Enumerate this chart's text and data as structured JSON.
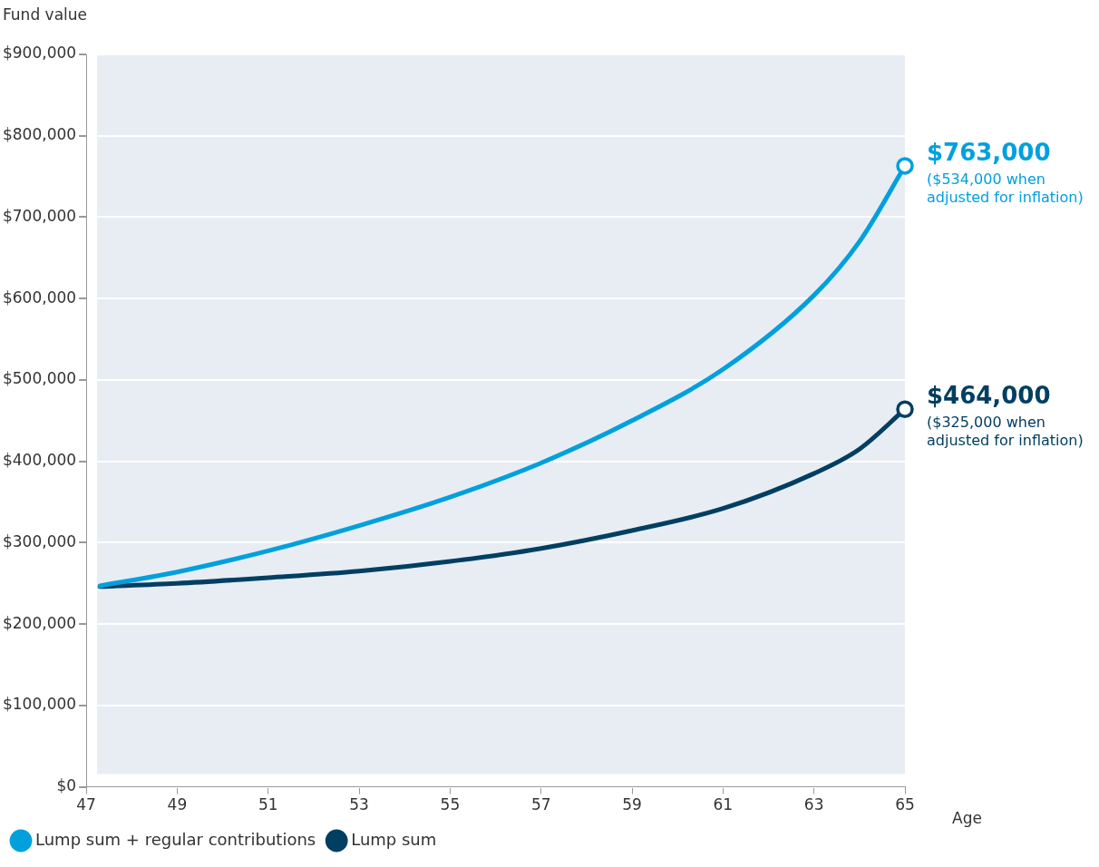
{
  "chart_data": {
    "type": "line",
    "xlabel": "Age",
    "ylabel": "Fund value",
    "xlim": [
      47,
      65
    ],
    "xticks": [
      47,
      49,
      51,
      53,
      55,
      57,
      59,
      61,
      63,
      65
    ],
    "ylim": [
      0,
      900000
    ],
    "yticks": [
      {
        "value": 0,
        "label": "$0"
      },
      {
        "value": 100000,
        "label": "$100,000"
      },
      {
        "value": 200000,
        "label": "$200,000"
      },
      {
        "value": 300000,
        "label": "$300,000"
      },
      {
        "value": 400000,
        "label": "$400,000"
      },
      {
        "value": 500000,
        "label": "$500,000"
      },
      {
        "value": 600000,
        "label": "$600,000"
      },
      {
        "value": 700000,
        "label": "$700,000"
      },
      {
        "value": 800000,
        "label": "$800,000"
      },
      {
        "value": 900000,
        "label": "$900,000"
      }
    ],
    "x": [
      47.3,
      49,
      51,
      53,
      55,
      57,
      59,
      61,
      63,
      64,
      65
    ],
    "series": [
      {
        "name": "Lump sum + regular contributions",
        "color": "#00a0dd",
        "values": [
          247000,
          264000,
          290000,
          321000,
          356000,
          398000,
          450000,
          513000,
          604000,
          670000,
          763000
        ]
      },
      {
        "name": "Lump sum",
        "color": "#003f62",
        "values": [
          246000,
          250000,
          257000,
          265000,
          277000,
          293000,
          315000,
          342000,
          385000,
          415000,
          464000
        ]
      }
    ],
    "annotations": [
      {
        "text": "$763,000",
        "x": 65,
        "y": 763000
      },
      "($534,000 when adjusted for inflation)",
      {
        "text": "$464,000",
        "x": 65,
        "y": 464000
      },
      "($325,000 when adjusted for inflation)"
    ],
    "grid": "y",
    "legend": "bottom left",
    "marker": "none",
    "line_style": "solid"
  }
}
